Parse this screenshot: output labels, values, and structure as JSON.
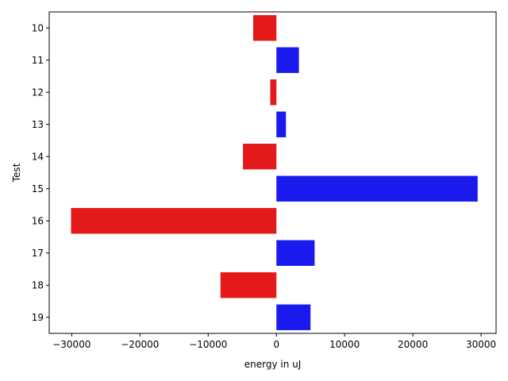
{
  "chart_data": {
    "type": "bar",
    "orientation": "horizontal",
    "title": "",
    "xlabel": "energy in uJ",
    "ylabel": "Test",
    "categories": [
      "10",
      "11",
      "12",
      "13",
      "14",
      "15",
      "16",
      "17",
      "18",
      "19"
    ],
    "values": [
      -3400,
      3300,
      -900,
      1400,
      -4900,
      29500,
      -30100,
      5600,
      -8200,
      5000
    ],
    "xlim": [
      -33300,
      32200
    ],
    "xticks": [
      -30000,
      -20000,
      -10000,
      0,
      10000,
      20000,
      30000
    ],
    "xtick_labels": [
      "−30000",
      "−20000",
      "−10000",
      "0",
      "10000",
      "20000",
      "30000"
    ],
    "grid": false,
    "legend": "none",
    "colors": {
      "positive": "#1a1aef",
      "negative": "#e41a1a"
    }
  }
}
